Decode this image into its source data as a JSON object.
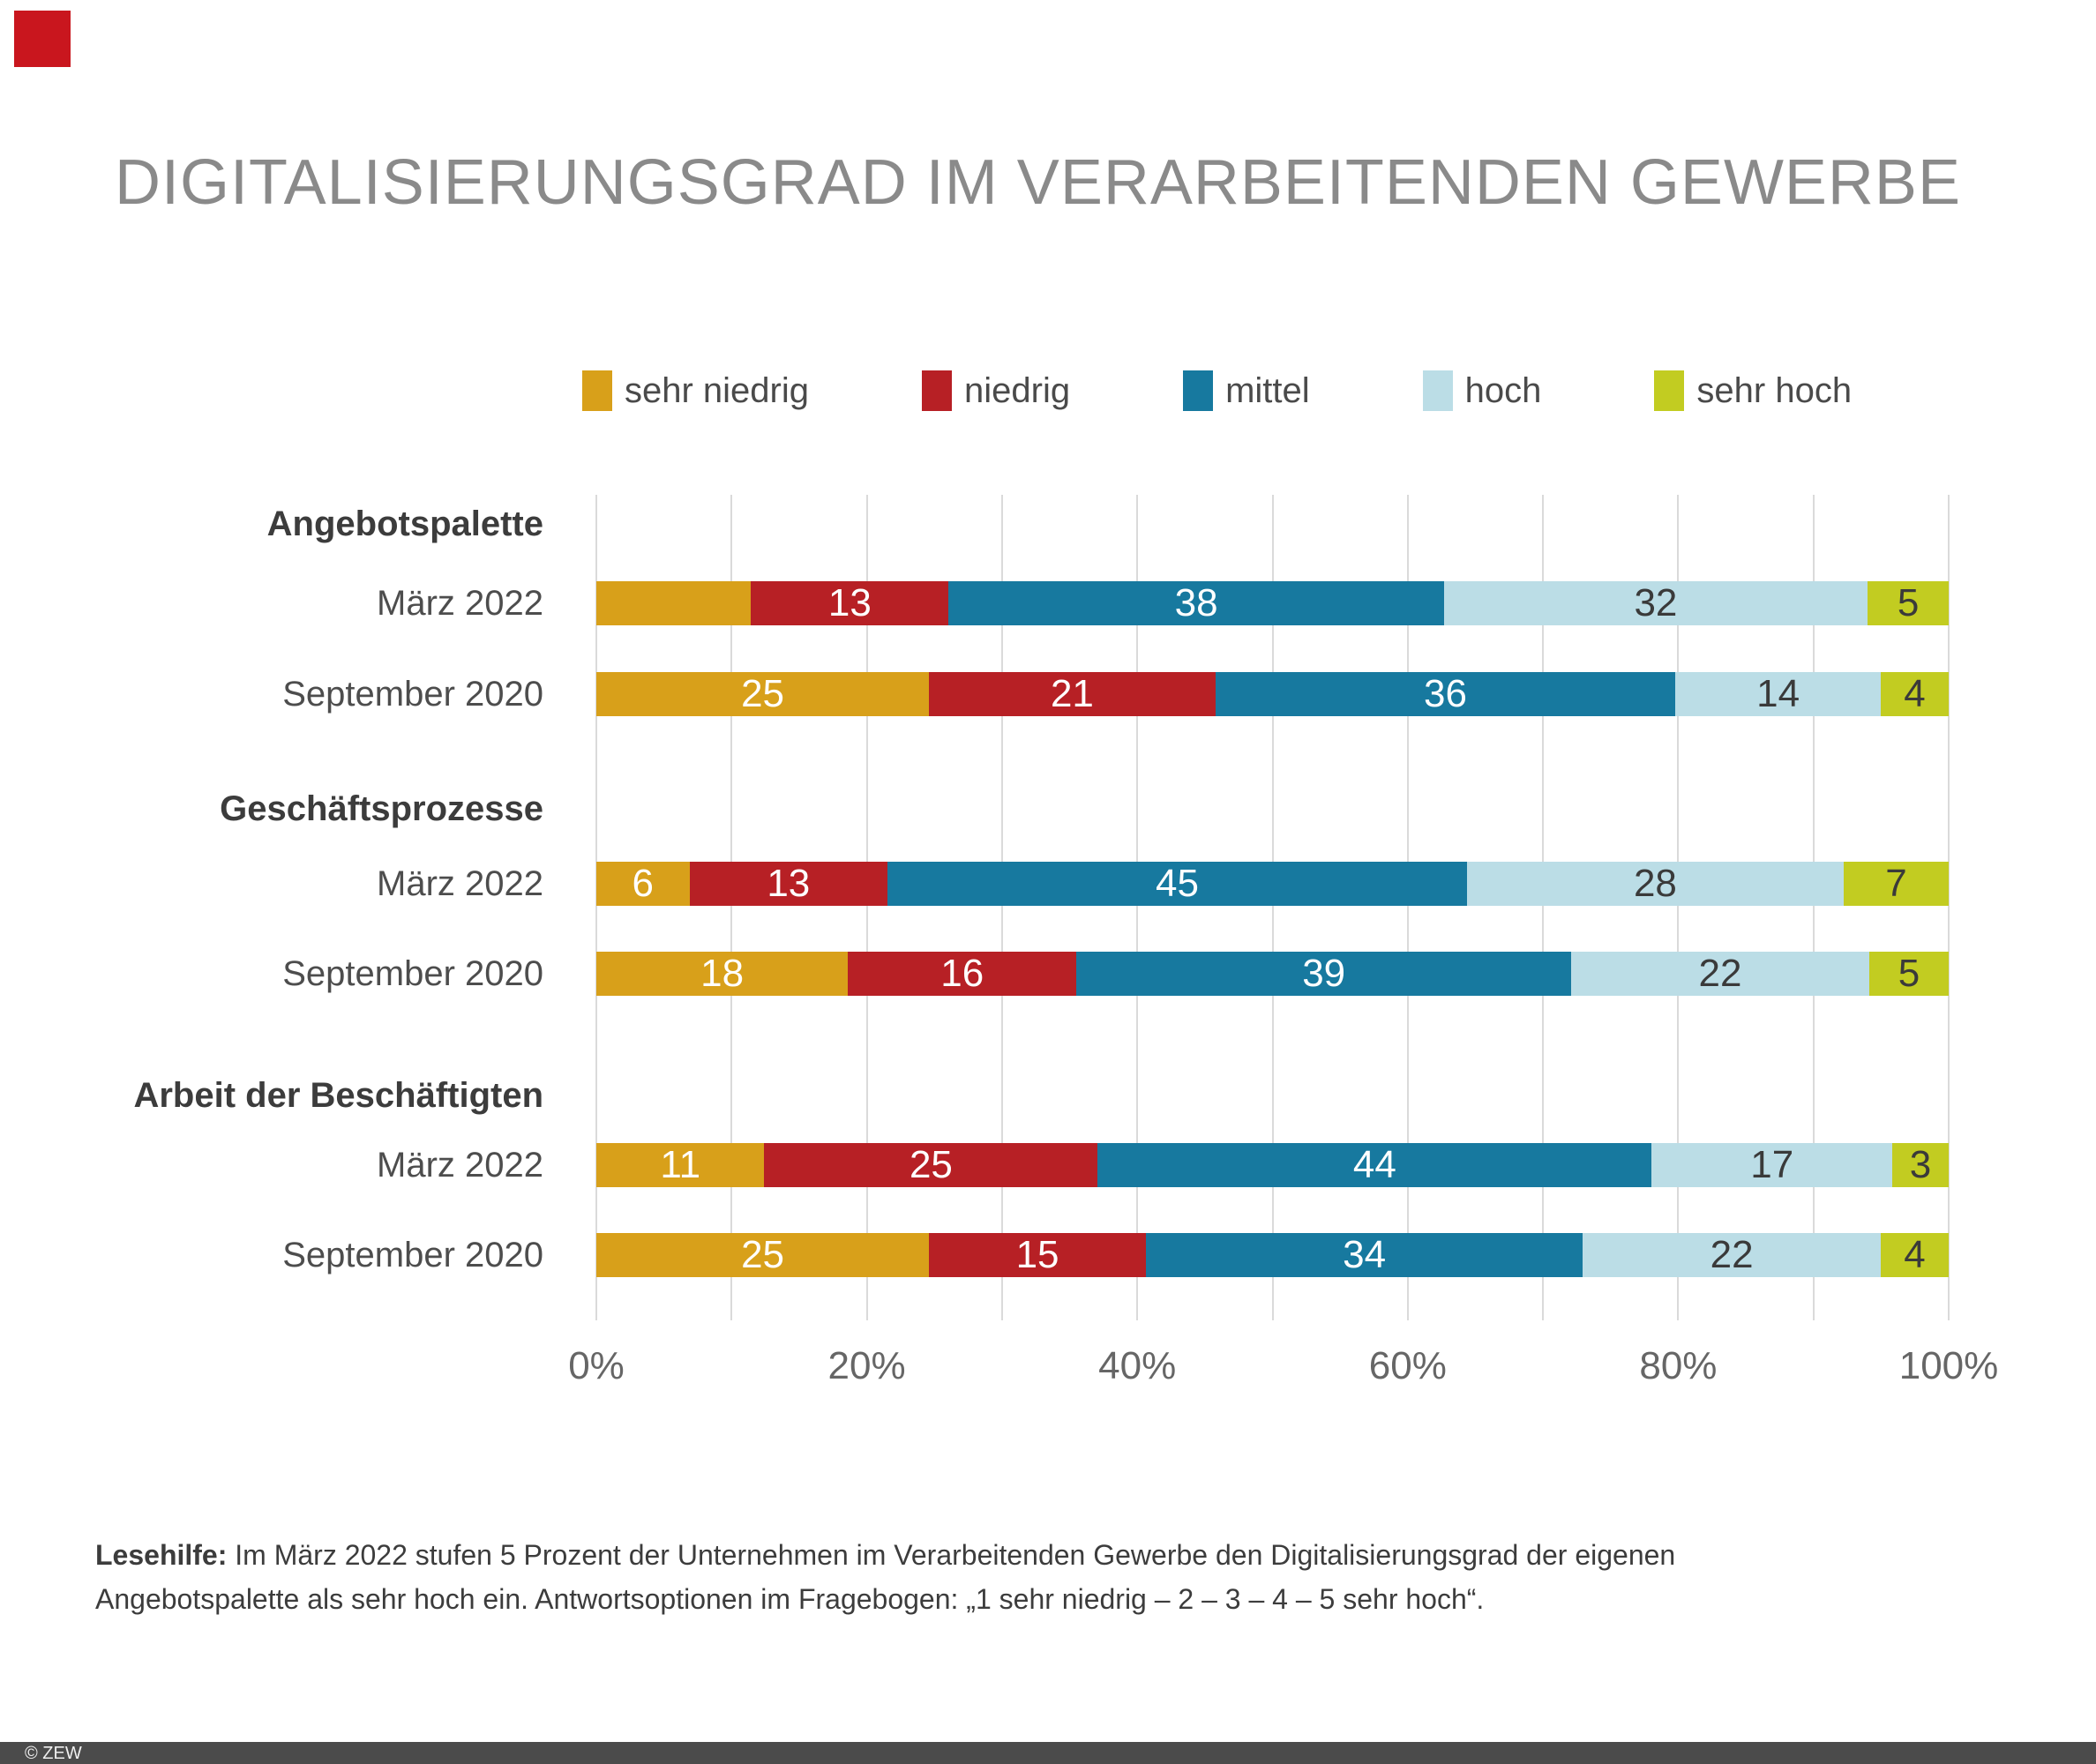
{
  "logo_color": "#C9161E",
  "chart_data": {
    "type": "bar",
    "orientation": "horizontal",
    "stacked": true,
    "unit": "percent",
    "title": "DIGITALISIERUNGSGRAD IM VERARBEITENDEN GEWERBE",
    "xlim": [
      0,
      100
    ],
    "x_ticks": [
      "0%",
      "20%",
      "40%",
      "60%",
      "80%",
      "100%"
    ],
    "gridlines_every_percent": 10,
    "legend_position": "top",
    "series": [
      {
        "name": "sehr niedrig",
        "color": "#D8A01A",
        "value_text_color": "#FFFFFF"
      },
      {
        "name": "niedrig",
        "color": "#B72025",
        "value_text_color": "#FFFFFF"
      },
      {
        "name": "mittel",
        "color": "#17799F",
        "value_text_color": "#FFFFFF"
      },
      {
        "name": "hoch",
        "color": "#BBDDE6",
        "value_text_color": "#3A3A3A"
      },
      {
        "name": "sehr hoch",
        "color": "#C2CC21",
        "value_text_color": "#3A3A3A"
      }
    ],
    "groups": [
      {
        "label": "Angebotspalette",
        "bars": [
          {
            "label": "März 2022",
            "values": [
              13,
              13,
              38,
              32,
              5
            ],
            "shown_labels": [
              "",
              "13",
              "38",
              "32",
              "5"
            ]
          },
          {
            "label": "September 2020",
            "values": [
              25,
              21,
              36,
              14,
              4
            ],
            "shown_labels": [
              "25",
              "21",
              "36",
              "14",
              "4"
            ]
          }
        ]
      },
      {
        "label": "Geschäftsprozesse",
        "bars": [
          {
            "label": "März 2022",
            "values": [
              6,
              13,
              45,
              28,
              7
            ],
            "shown_labels": [
              "6",
              "13",
              "45",
              "28",
              "7"
            ]
          },
          {
            "label": "September 2020",
            "values": [
              18,
              16,
              39,
              22,
              5
            ],
            "shown_labels": [
              "18",
              "16",
              "39",
              "22",
              "5"
            ]
          }
        ]
      },
      {
        "label": "Arbeit der Beschäftigten",
        "bars": [
          {
            "label": "März 2022",
            "values": [
              11,
              25,
              44,
              17,
              3
            ],
            "shown_labels": [
              "11",
              "25",
              "44",
              "17",
              "3"
            ]
          },
          {
            "label": "September 2020",
            "values": [
              25,
              15,
              34,
              22,
              4
            ],
            "shown_labels": [
              "25",
              "15",
              "34",
              "22",
              "4"
            ]
          }
        ]
      }
    ]
  },
  "footnote": {
    "label": "Lesehilfe:",
    "line1": "Im März 2022 stufen 5 Prozent der Unternehmen im Verarbeitenden Gewerbe den Digitalisierungsgrad der eigenen",
    "line2": "Angebotspalette als sehr hoch ein. Antwortsoptionen im Fragebogen: „1 sehr niedrig – 2 – 3 – 4 – 5 sehr hoch“."
  },
  "footer": {
    "copyright": "© ZEW"
  }
}
